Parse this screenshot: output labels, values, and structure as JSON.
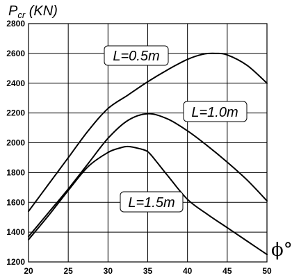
{
  "chart_data": {
    "type": "line",
    "ylabel_main": "P",
    "ylabel_sub": "cr",
    "ylabel_unit": " (KN)",
    "xlabel": "ϕ°",
    "xlim": [
      20,
      50
    ],
    "ylim": [
      1200,
      2800
    ],
    "xticks": [
      20,
      25,
      30,
      35,
      40,
      45,
      50
    ],
    "yticks": [
      1200,
      1400,
      1600,
      1800,
      2000,
      2200,
      2400,
      2600,
      2800
    ],
    "grid": true,
    "series": [
      {
        "name": "L=0.5m",
        "x": [
          20,
          22.5,
          25,
          27.5,
          30,
          32.5,
          35,
          37.5,
          40,
          42,
          43.5,
          45,
          47.5,
          50
        ],
        "y": [
          1540,
          1720,
          1900,
          2080,
          2230,
          2320,
          2410,
          2490,
          2560,
          2595,
          2600,
          2590,
          2520,
          2400
        ]
      },
      {
        "name": "L=1.0m",
        "x": [
          20,
          22.5,
          25,
          27.5,
          30,
          32.5,
          35,
          37.5,
          40,
          42.5,
          45,
          47.5,
          50
        ],
        "y": [
          1370,
          1530,
          1690,
          1860,
          2030,
          2150,
          2195,
          2160,
          2080,
          1980,
          1870,
          1750,
          1610
        ]
      },
      {
        "name": "L=1.5m",
        "x": [
          20,
          22.5,
          25,
          27.5,
          30,
          31.5,
          32.5,
          34,
          35,
          36,
          37.5,
          40,
          42.5,
          45,
          47.5,
          50
        ],
        "y": [
          1350,
          1510,
          1680,
          1840,
          1935,
          1965,
          1975,
          1960,
          1940,
          1880,
          1780,
          1620,
          1520,
          1430,
          1340,
          1250
        ]
      }
    ]
  }
}
